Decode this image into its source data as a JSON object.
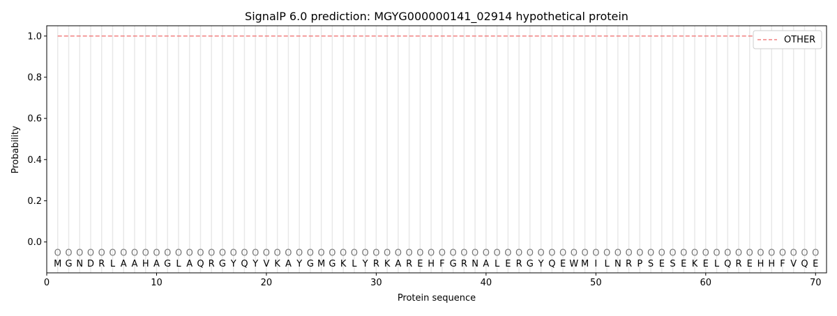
{
  "chart_data": {
    "type": "line",
    "title": "SignalP 6.0 prediction: MGYG000000141_02914 hypothetical protein",
    "xlabel": "Protein sequence",
    "ylabel": "Probability",
    "xlim": [
      0,
      71
    ],
    "ylim": [
      -0.15,
      1.05
    ],
    "xticks": [
      0,
      10,
      20,
      30,
      40,
      50,
      60,
      70
    ],
    "yticks": [
      0.0,
      0.2,
      0.4,
      0.6,
      0.8,
      1.0
    ],
    "legend_placement": "top-right",
    "sequence": "MGNDRLAAHAGLAQRGYQYVKAYGMGKLYRKAREHFGRNALERGYQEWMILNRPSESEKELQREHHFVQE",
    "region_label": "O",
    "series": [
      {
        "name": "OTHER",
        "color": "#f08080",
        "style": "dashed",
        "x_start": 1,
        "x_end": 70,
        "value": 1.0
      }
    ]
  }
}
